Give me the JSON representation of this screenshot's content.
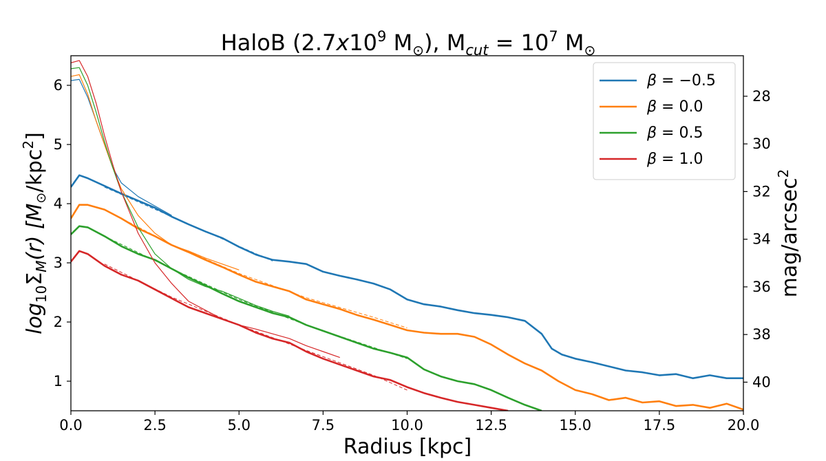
{
  "chart_data": {
    "type": "line",
    "title": {
      "prefix": "HaloB (2.7",
      "x_letter": "x",
      "mantissa": "10",
      "exp": "9",
      "mass_unit": " M",
      "sun_sub": "⊙",
      "sep": "), M",
      "cut_sub": "cut",
      "eq": " = 10",
      "cut_exp": "7",
      "cut_unit": " M",
      "cut_sun": "⊙"
    },
    "xlabel": "Radius [kpc]",
    "ylabel": {
      "log": "log",
      "log_sub": "10",
      "sigma": "Σ",
      "m_sub": "M",
      "rest": "(r) [M",
      "sun": "⊙",
      "unit": "/kpc",
      "sq": "2",
      "close": "]"
    },
    "ylabel_right": {
      "text": "mag/arcsec",
      "sq": "2"
    },
    "xlim": [
      0,
      20
    ],
    "ylim": [
      0.5,
      6.5
    ],
    "y2lim": [
      41.2,
      26.3
    ],
    "xticks": [
      "0.0",
      "2.5",
      "5.0",
      "7.5",
      "10.0",
      "12.5",
      "15.0",
      "17.5",
      "20.0"
    ],
    "xtick_values": [
      0,
      2.5,
      5,
      7.5,
      10,
      12.5,
      15,
      17.5,
      20
    ],
    "yticks": [
      "1",
      "2",
      "3",
      "4",
      "5",
      "6"
    ],
    "ytick_values": [
      1,
      2,
      3,
      4,
      5,
      6
    ],
    "y2ticks": [
      "28",
      "30",
      "32",
      "34",
      "36",
      "38",
      "40"
    ],
    "y2tick_values": [
      28,
      30,
      32,
      34,
      36,
      38,
      40
    ],
    "legend": {
      "position": "top-right",
      "entries": [
        {
          "name": "β = −0.5",
          "beta": "β",
          "eq": "= −0.5",
          "color": "#1f77b4"
        },
        {
          "name": "β = 0.0",
          "beta": "β",
          "eq": "= 0.0",
          "color": "#ff7f0e"
        },
        {
          "name": "β = 0.5",
          "beta": "β",
          "eq": "= 0.5",
          "color": "#2ca02c"
        },
        {
          "name": "β = 1.0",
          "beta": "β",
          "eq": "= 1.0",
          "color": "#d62728"
        }
      ]
    },
    "series": [
      {
        "name": "β = −0.5 (profile)",
        "color": "#1f77b4",
        "style": "thick",
        "points": [
          [
            0,
            4.28
          ],
          [
            0.25,
            4.48
          ],
          [
            0.5,
            4.43
          ],
          [
            1,
            4.3
          ],
          [
            1.5,
            4.17
          ],
          [
            2,
            4.05
          ],
          [
            2.5,
            3.93
          ],
          [
            3,
            3.78
          ],
          [
            3.5,
            3.65
          ],
          [
            4,
            3.53
          ],
          [
            4.5,
            3.42
          ],
          [
            5,
            3.27
          ],
          [
            5.5,
            3.14
          ],
          [
            6,
            3.05
          ],
          [
            6.5,
            3.02
          ],
          [
            7,
            2.98
          ],
          [
            7.5,
            2.85
          ],
          [
            8,
            2.78
          ],
          [
            8.5,
            2.72
          ],
          [
            9,
            2.65
          ],
          [
            9.5,
            2.55
          ],
          [
            10,
            2.38
          ],
          [
            10.5,
            2.3
          ],
          [
            11,
            2.26
          ],
          [
            11.5,
            2.2
          ],
          [
            12,
            2.15
          ],
          [
            12.5,
            2.12
          ],
          [
            13,
            2.08
          ],
          [
            13.5,
            2.02
          ],
          [
            14,
            1.8
          ],
          [
            14.3,
            1.55
          ],
          [
            14.6,
            1.45
          ],
          [
            15,
            1.38
          ],
          [
            15.5,
            1.32
          ],
          [
            16,
            1.25
          ],
          [
            16.5,
            1.18
          ],
          [
            17,
            1.15
          ],
          [
            17.5,
            1.1
          ],
          [
            18,
            1.12
          ],
          [
            18.5,
            1.05
          ],
          [
            19,
            1.1
          ],
          [
            19.5,
            1.05
          ],
          [
            20,
            1.05
          ]
        ]
      },
      {
        "name": "β = 0.0 (profile)",
        "color": "#ff7f0e",
        "style": "thick",
        "points": [
          [
            0,
            3.75
          ],
          [
            0.25,
            3.98
          ],
          [
            0.5,
            3.98
          ],
          [
            1,
            3.9
          ],
          [
            1.5,
            3.75
          ],
          [
            2,
            3.58
          ],
          [
            2.5,
            3.45
          ],
          [
            3,
            3.3
          ],
          [
            3.5,
            3.18
          ],
          [
            4,
            3.05
          ],
          [
            4.5,
            2.93
          ],
          [
            5,
            2.8
          ],
          [
            5.5,
            2.68
          ],
          [
            6,
            2.6
          ],
          [
            6.5,
            2.52
          ],
          [
            7,
            2.38
          ],
          [
            7.5,
            2.3
          ],
          [
            8,
            2.22
          ],
          [
            8.5,
            2.12
          ],
          [
            9,
            2.04
          ],
          [
            9.5,
            1.95
          ],
          [
            10,
            1.86
          ],
          [
            10.5,
            1.82
          ],
          [
            11,
            1.8
          ],
          [
            11.5,
            1.8
          ],
          [
            12,
            1.75
          ],
          [
            12.5,
            1.62
          ],
          [
            13,
            1.45
          ],
          [
            13.5,
            1.3
          ],
          [
            14,
            1.18
          ],
          [
            14.5,
            1.0
          ],
          [
            15,
            0.85
          ],
          [
            15.5,
            0.78
          ],
          [
            16,
            0.68
          ],
          [
            16.5,
            0.72
          ],
          [
            17,
            0.64
          ],
          [
            17.5,
            0.66
          ],
          [
            18,
            0.58
          ],
          [
            18.5,
            0.6
          ],
          [
            19,
            0.55
          ],
          [
            19.5,
            0.62
          ],
          [
            20,
            0.52
          ]
        ]
      },
      {
        "name": "β = 0.5 (profile)",
        "color": "#2ca02c",
        "style": "thick",
        "points": [
          [
            0,
            3.48
          ],
          [
            0.25,
            3.62
          ],
          [
            0.5,
            3.6
          ],
          [
            1,
            3.45
          ],
          [
            1.5,
            3.28
          ],
          [
            2,
            3.15
          ],
          [
            2.5,
            3.05
          ],
          [
            3,
            2.9
          ],
          [
            3.5,
            2.75
          ],
          [
            4,
            2.62
          ],
          [
            4.5,
            2.48
          ],
          [
            5,
            2.35
          ],
          [
            5.5,
            2.25
          ],
          [
            6,
            2.15
          ],
          [
            6.5,
            2.08
          ],
          [
            7,
            1.95
          ],
          [
            7.5,
            1.85
          ],
          [
            8,
            1.75
          ],
          [
            8.5,
            1.65
          ],
          [
            9,
            1.55
          ],
          [
            9.5,
            1.48
          ],
          [
            10,
            1.4
          ],
          [
            10.5,
            1.2
          ],
          [
            11,
            1.08
          ],
          [
            11.5,
            1.0
          ],
          [
            12,
            0.95
          ],
          [
            12.5,
            0.85
          ],
          [
            13,
            0.72
          ],
          [
            13.5,
            0.6
          ],
          [
            14,
            0.5
          ]
        ]
      },
      {
        "name": "β = 1.0 (profile)",
        "color": "#d62728",
        "style": "thick",
        "points": [
          [
            0,
            3.02
          ],
          [
            0.25,
            3.2
          ],
          [
            0.5,
            3.15
          ],
          [
            1,
            2.95
          ],
          [
            1.5,
            2.8
          ],
          [
            2,
            2.7
          ],
          [
            2.5,
            2.55
          ],
          [
            3,
            2.4
          ],
          [
            3.5,
            2.25
          ],
          [
            4,
            2.15
          ],
          [
            4.5,
            2.05
          ],
          [
            5,
            1.95
          ],
          [
            5.5,
            1.82
          ],
          [
            6,
            1.72
          ],
          [
            6.5,
            1.65
          ],
          [
            7,
            1.5
          ],
          [
            7.5,
            1.38
          ],
          [
            8,
            1.28
          ],
          [
            8.5,
            1.18
          ],
          [
            9,
            1.08
          ],
          [
            9.5,
            1.02
          ],
          [
            10,
            0.9
          ],
          [
            10.5,
            0.8
          ],
          [
            11,
            0.72
          ],
          [
            11.5,
            0.65
          ],
          [
            12,
            0.6
          ],
          [
            12.5,
            0.55
          ],
          [
            13,
            0.5
          ]
        ]
      },
      {
        "name": "β = −0.5 (model)",
        "color": "#1f77b4",
        "style": "thin",
        "points": [
          [
            0,
            6.08
          ],
          [
            0.25,
            6.1
          ],
          [
            0.5,
            5.8
          ],
          [
            0.75,
            5.4
          ],
          [
            1,
            5.0
          ],
          [
            1.25,
            4.6
          ],
          [
            1.5,
            4.35
          ],
          [
            2,
            4.12
          ],
          [
            2.5,
            3.96
          ],
          [
            3,
            3.8
          ]
        ]
      },
      {
        "name": "β = 0.0 (model)",
        "color": "#ff7f0e",
        "style": "thin",
        "points": [
          [
            0,
            6.15
          ],
          [
            0.25,
            6.18
          ],
          [
            0.5,
            5.85
          ],
          [
            0.75,
            5.4
          ],
          [
            1,
            5.0
          ],
          [
            1.25,
            4.6
          ],
          [
            1.5,
            4.25
          ],
          [
            2,
            3.8
          ],
          [
            2.5,
            3.5
          ],
          [
            3,
            3.3
          ],
          [
            3.5,
            3.2
          ],
          [
            4,
            3.08
          ],
          [
            4.5,
            2.98
          ],
          [
            5,
            2.88
          ]
        ]
      },
      {
        "name": "β = 0.5 (model)",
        "color": "#2ca02c",
        "style": "thin",
        "points": [
          [
            0,
            6.28
          ],
          [
            0.25,
            6.3
          ],
          [
            0.5,
            6.0
          ],
          [
            0.75,
            5.55
          ],
          [
            1,
            5.05
          ],
          [
            1.25,
            4.6
          ],
          [
            1.5,
            4.2
          ],
          [
            2,
            3.6
          ],
          [
            2.5,
            3.15
          ],
          [
            3,
            2.9
          ],
          [
            3.5,
            2.72
          ],
          [
            4,
            2.6
          ],
          [
            4.5,
            2.52
          ],
          [
            5,
            2.4
          ],
          [
            5.5,
            2.28
          ],
          [
            6,
            2.18
          ],
          [
            6.5,
            2.1
          ]
        ]
      },
      {
        "name": "β = 1.0 (model)",
        "color": "#d62728",
        "style": "thin",
        "points": [
          [
            0,
            6.38
          ],
          [
            0.25,
            6.42
          ],
          [
            0.5,
            6.15
          ],
          [
            0.75,
            5.7
          ],
          [
            1,
            5.15
          ],
          [
            1.25,
            4.65
          ],
          [
            1.5,
            4.2
          ],
          [
            2,
            3.5
          ],
          [
            2.5,
            3.0
          ],
          [
            3,
            2.65
          ],
          [
            3.5,
            2.35
          ],
          [
            4,
            2.2
          ],
          [
            4.5,
            2.05
          ],
          [
            5,
            1.95
          ],
          [
            5.5,
            1.88
          ],
          [
            6,
            1.8
          ],
          [
            6.5,
            1.72
          ],
          [
            7,
            1.6
          ],
          [
            7.5,
            1.5
          ],
          [
            8,
            1.4
          ]
        ]
      },
      {
        "name": "β = −0.5 (fit)",
        "color": "#1f77b4",
        "style": "dashed",
        "points": [
          [
            1,
            4.28
          ],
          [
            2,
            4.03
          ],
          [
            3,
            3.78
          ],
          [
            4,
            3.53
          ],
          [
            5,
            3.28
          ],
          [
            6,
            3.03
          ]
        ]
      },
      {
        "name": "β = 0.0 (fit)",
        "color": "#ff7f0e",
        "style": "dashed",
        "points": [
          [
            1,
            3.9
          ],
          [
            3,
            3.31
          ],
          [
            5,
            2.82
          ],
          [
            7,
            2.41
          ],
          [
            9,
            2.08
          ],
          [
            10,
            1.9
          ]
        ]
      },
      {
        "name": "β = 0.5 (fit)",
        "color": "#2ca02c",
        "style": "dashed",
        "points": [
          [
            1,
            3.45
          ],
          [
            3,
            2.9
          ],
          [
            5,
            2.38
          ],
          [
            7,
            1.95
          ],
          [
            9,
            1.57
          ],
          [
            10,
            1.38
          ]
        ]
      },
      {
        "name": "β = 1.0 (fit)",
        "color": "#d62728",
        "style": "dashed",
        "points": [
          [
            1,
            2.98
          ],
          [
            3,
            2.42
          ],
          [
            5,
            1.95
          ],
          [
            7,
            1.52
          ],
          [
            9,
            1.1
          ],
          [
            10,
            0.85
          ]
        ]
      }
    ]
  }
}
